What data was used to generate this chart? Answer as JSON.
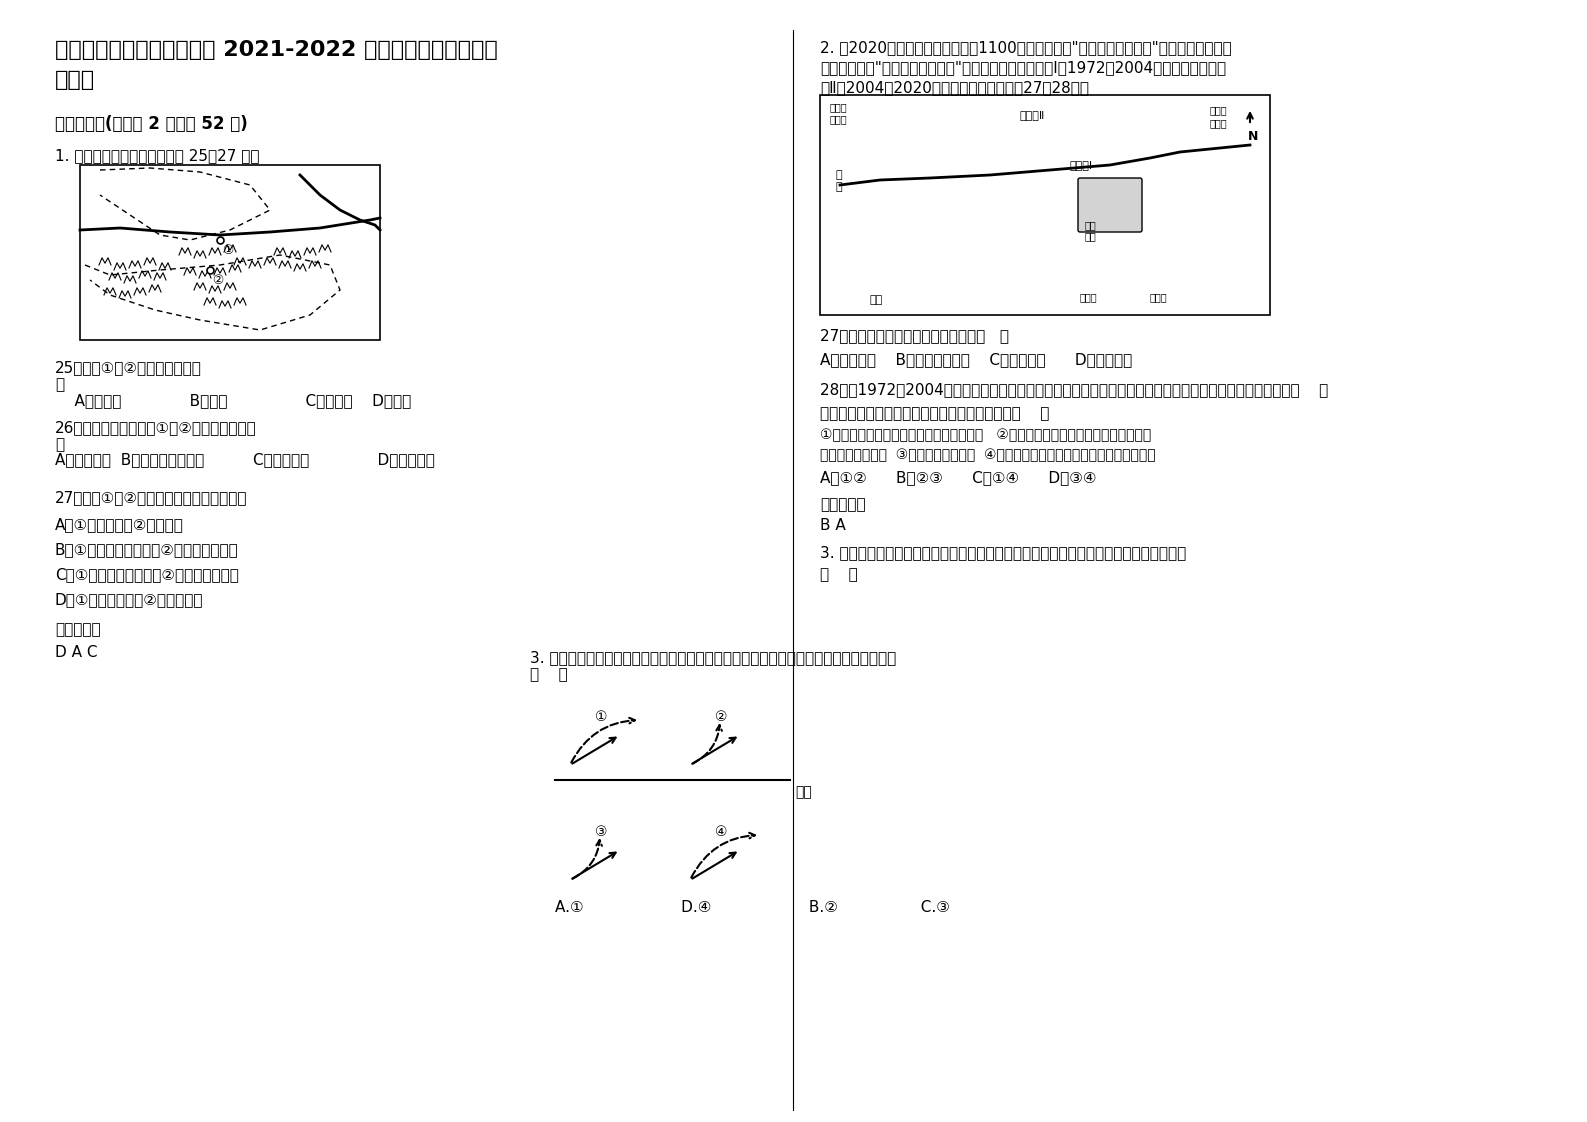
{
  "title_line1": "河北省邯郸市李家疃镇中学 2021-2022 学年高一地理联考试卷",
  "title_line2": "含解析",
  "section1": "一、选择题(每小题 2 分，共 52 分)",
  "q1_intro": "1. 读我国某区域示意图，回答 25～27 题。",
  "q25": "25．图中①、②两地之间的山脉\n是",
  "q25_choices": "    A．贺兰山              B．阴山                C．大巴山    D．秦岭",
  "q26": "26．下列矿产地，位于①、②两地所在省区的\n是",
  "q26_choices": "A．神府煤矿  B．白云鄂博稀土矿          C．大同煤矿              D．金昌镍矿",
  "q27": "27．关于①、②两地差异的叙述，正确的是",
  "q27a": "A．①地是草原，②地是森林",
  "q27b": "B．①地是半干旱地区，②地是半湿润地区",
  "q27c": "C．①地是落叶阔叶林，②地是常绿阔叶林",
  "q27d": "D．①地是中温带，②地是暖温带",
  "ref1": "参考答案：",
  "ans1": "D A C",
  "q2_intro": "2. 到2020年西安城镇人口拟达到1100万人，并形成\"一核五区十卫星城\"的总体布局。下图为我国西安市\"一核五区十卫星城\"示意图，其中，新城区Ⅰ为1972～2004年规划城区，新城区Ⅱ为2004～2020年规划城区，读图回答27～28题。",
  "q27_2": "27．目前，西安市城市化过程正处于（   ）",
  "q27_2choices": "A．初期阶段    B．加速发展阶段    C．高级阶段      D．衰落阶段",
  "q28": "28．在1972～2004年西安市城市化总体规划要中，西安市两次规划的新城区都向北北迁移，其主要原因是（    ）",
  "q28_cond": "①北部土地资源丰富，地势平坦，地价低廉   ②北部有渭河从规划区域流过，为该区域提供了充足的水源  ③北部交通十分便利  ④北部地区工业发达，科技先进，经济基础好",
  "q28_choices": "A．①②      B．②③      C．①④      D．③④",
  "ref2": "参考答案：",
  "ans2": "B A",
  "q3_intro": "3. 下图中，实线表示水平运动物体的原始方向，虚线表示运动物体的偏转方向，正确的是\n（    ）",
  "q3_choices_bottom": "A.①                    D.④                    B.②                 C.③",
  "bg_color": "#ffffff",
  "text_color": "#000000",
  "font_size_title": 16,
  "font_size_body": 11
}
